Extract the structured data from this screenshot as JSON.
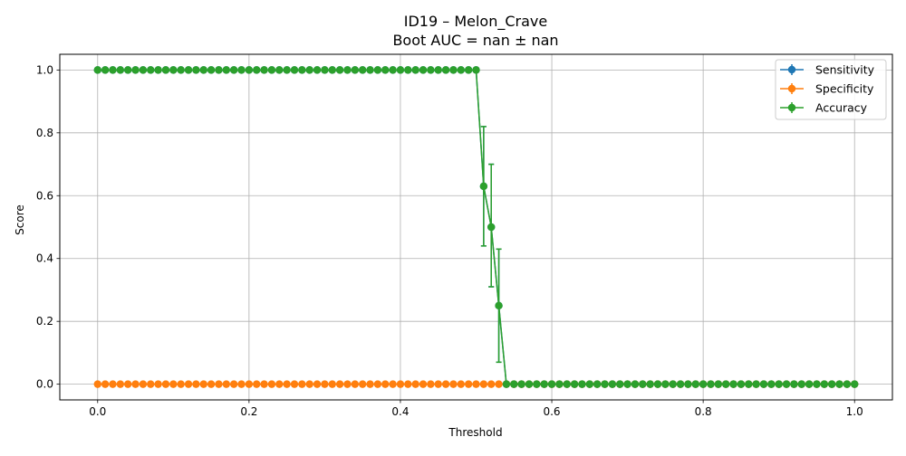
{
  "chart_data": {
    "type": "line",
    "title": "ID19 – Melon_Crave",
    "subtitle": "Boot AUC = nan ± nan",
    "xlabel": "Threshold",
    "ylabel": "Score",
    "xlim": [
      -0.05,
      1.05
    ],
    "ylim": [
      -0.05,
      1.05
    ],
    "xticks": [
      0.0,
      0.2,
      0.4,
      0.6,
      0.8,
      1.0
    ],
    "xtick_labels": [
      "0.0",
      "0.2",
      "0.4",
      "0.6",
      "0.8",
      "1.0"
    ],
    "yticks": [
      0.0,
      0.2,
      0.4,
      0.6,
      0.8,
      1.0
    ],
    "ytick_labels": [
      "0.0",
      "0.2",
      "0.4",
      "0.6",
      "0.8",
      "1.0"
    ],
    "grid": true,
    "legend_position": "top-right",
    "x_start": 0.0,
    "x_step": 0.01,
    "series": [
      {
        "name": "Sensitivity",
        "color": "#1f77b4",
        "values": [
          1,
          1,
          1,
          1,
          1,
          1,
          1,
          1,
          1,
          1,
          1,
          1,
          1,
          1,
          1,
          1,
          1,
          1,
          1,
          1,
          1,
          1,
          1,
          1,
          1,
          1,
          1,
          1,
          1,
          1,
          1,
          1,
          1,
          1,
          1,
          1,
          1,
          1,
          1,
          1,
          1,
          1,
          1,
          1,
          1,
          1,
          1,
          1,
          1,
          1,
          1,
          0.63,
          0.5,
          0.25,
          0,
          0,
          0,
          0,
          0,
          0,
          0,
          0,
          0,
          0,
          0,
          0,
          0,
          0,
          0,
          0,
          0,
          0,
          0,
          0,
          0,
          0,
          0,
          0,
          0,
          0,
          0,
          0,
          0,
          0,
          0,
          0,
          0,
          0,
          0,
          0,
          0,
          0,
          0,
          0,
          0,
          0,
          0,
          0,
          0,
          0,
          0
        ],
        "error_bars": [
          {
            "x": 0.51,
            "low": 0.44,
            "high": 0.82
          },
          {
            "x": 0.52,
            "low": 0.31,
            "high": 0.7
          },
          {
            "x": 0.53,
            "low": 0.07,
            "high": 0.43
          }
        ]
      },
      {
        "name": "Specificity",
        "color": "#ff7f0e",
        "values": [
          0,
          0,
          0,
          0,
          0,
          0,
          0,
          0,
          0,
          0,
          0,
          0,
          0,
          0,
          0,
          0,
          0,
          0,
          0,
          0,
          0,
          0,
          0,
          0,
          0,
          0,
          0,
          0,
          0,
          0,
          0,
          0,
          0,
          0,
          0,
          0,
          0,
          0,
          0,
          0,
          0,
          0,
          0,
          0,
          0,
          0,
          0,
          0,
          0,
          0,
          0,
          0,
          0,
          0,
          0,
          0,
          0,
          0,
          0,
          0,
          0,
          0,
          0,
          0,
          0,
          0,
          0,
          0,
          0,
          0,
          0,
          0,
          0,
          0,
          0,
          0,
          0,
          0,
          0,
          0,
          0,
          0,
          0,
          0,
          0,
          0,
          0,
          0,
          0,
          0,
          0,
          0,
          0,
          0,
          0,
          0,
          0,
          0,
          0,
          0,
          0
        ],
        "error_bars": []
      },
      {
        "name": "Accuracy",
        "color": "#2ca02c",
        "values": [
          1,
          1,
          1,
          1,
          1,
          1,
          1,
          1,
          1,
          1,
          1,
          1,
          1,
          1,
          1,
          1,
          1,
          1,
          1,
          1,
          1,
          1,
          1,
          1,
          1,
          1,
          1,
          1,
          1,
          1,
          1,
          1,
          1,
          1,
          1,
          1,
          1,
          1,
          1,
          1,
          1,
          1,
          1,
          1,
          1,
          1,
          1,
          1,
          1,
          1,
          1,
          0.63,
          0.5,
          0.25,
          0,
          0,
          0,
          0,
          0,
          0,
          0,
          0,
          0,
          0,
          0,
          0,
          0,
          0,
          0,
          0,
          0,
          0,
          0,
          0,
          0,
          0,
          0,
          0,
          0,
          0,
          0,
          0,
          0,
          0,
          0,
          0,
          0,
          0,
          0,
          0,
          0,
          0,
          0,
          0,
          0,
          0,
          0,
          0,
          0,
          0,
          0
        ],
        "error_bars": [
          {
            "x": 0.51,
            "low": 0.44,
            "high": 0.82
          },
          {
            "x": 0.52,
            "low": 0.31,
            "high": 0.7
          },
          {
            "x": 0.53,
            "low": 0.07,
            "high": 0.43
          }
        ]
      }
    ]
  }
}
